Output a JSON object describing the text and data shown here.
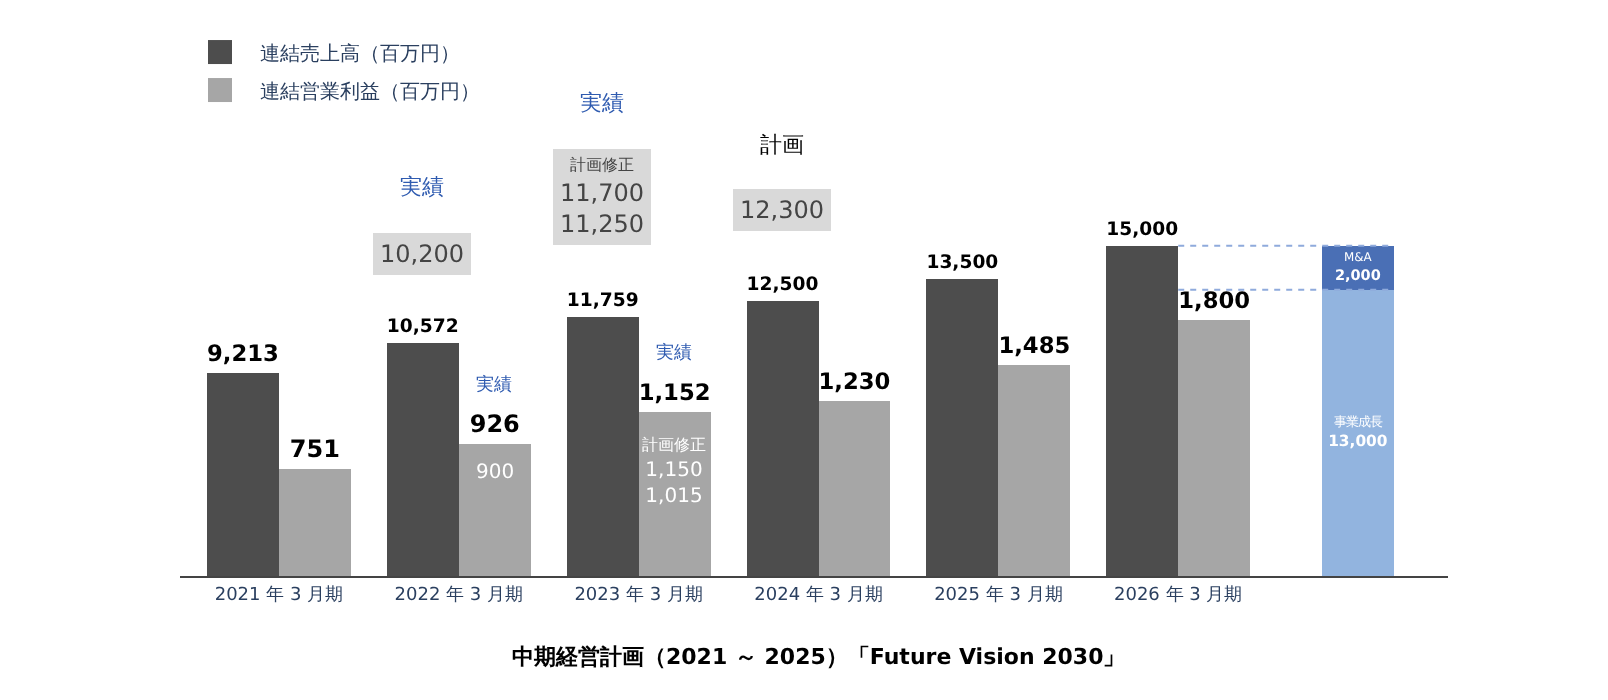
{
  "chart_data": {
    "type": "bar",
    "stacked": true,
    "categories": [
      "2021 年 3 月期",
      "2022 年 3 月期",
      "2023 年 3 月期",
      "2024 年 3 月期",
      "2025 年 3 月期",
      "2026 年 3 月期",
      null
    ],
    "series": [
      {
        "name": "連結売上高（百万円）",
        "color": "#4d4d4d",
        "values": [
          9213,
          10572,
          11759,
          12500,
          13500,
          15000,
          null
        ],
        "value_labels": [
          "9,213",
          "10,572",
          "11,759",
          "12,500",
          "13,500",
          "15,000",
          null
        ]
      },
      {
        "name": "連結営業利益（百万円）",
        "color": "#a6a6a6",
        "axis": "y2",
        "values": [
          751,
          926,
          1152,
          1230,
          1485,
          1800,
          null
        ],
        "value_labels": [
          "751",
          "926",
          "1,152",
          "1,230",
          "1,485",
          "1,800",
          null
        ]
      },
      {
        "name": "事業成長",
        "color": "#92b4df",
        "values": [
          null,
          null,
          null,
          null,
          null,
          null,
          13000
        ],
        "value_labels": [
          null,
          null,
          null,
          null,
          null,
          null,
          "13,000"
        ]
      },
      {
        "name": "M&A",
        "color": "#4a6fb5",
        "values": [
          null,
          null,
          null,
          null,
          null,
          null,
          2000
        ],
        "value_labels": [
          null,
          null,
          null,
          null,
          null,
          null,
          "2,000"
        ]
      }
    ],
    "tick_labels": "x",
    "legend": "top left",
    "ref_lines": [
      {
        "axis": "y",
        "value": 15000,
        "color": "#8faadc",
        "line_style": "dotted"
      },
      {
        "axis": "y",
        "value": 13000,
        "color": "#8faadc",
        "line_style": "dotted"
      }
    ],
    "annotations": [
      "実績",
      "10,200",
      "実績",
      "計画修正\n11,700\n11,250",
      "計画",
      "12,300",
      "実績",
      "900",
      "実績",
      "計画修正\n1,150\n1,015",
      "中期経営計画（2021 ～ 2025）「Future Vision 2030」"
    ]
  }
}
